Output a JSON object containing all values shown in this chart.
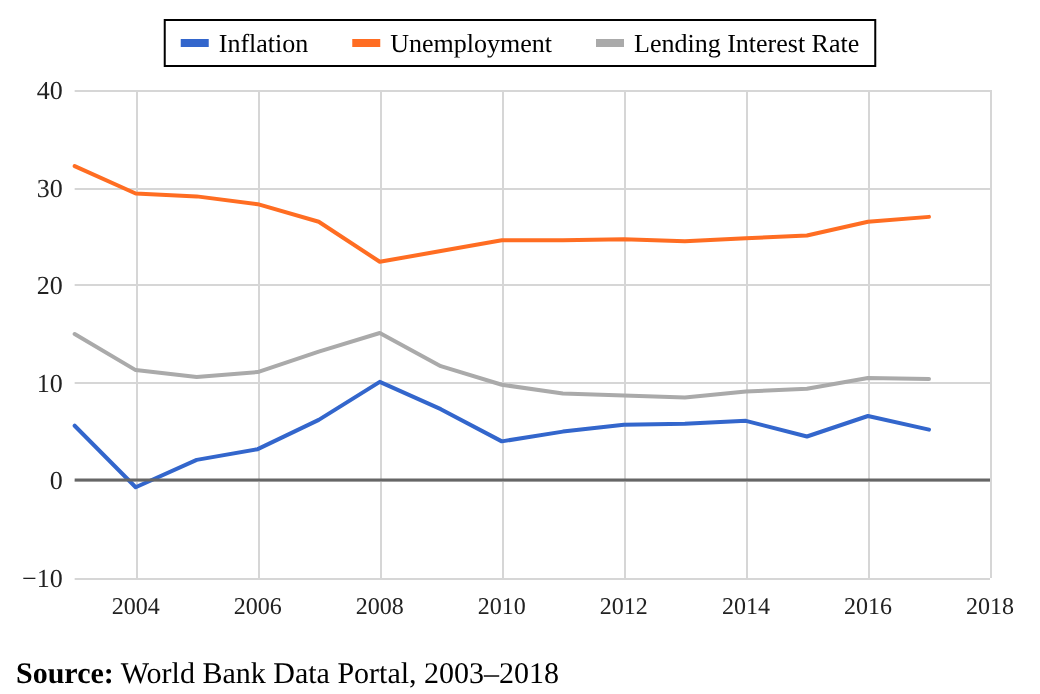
{
  "chart_data": {
    "type": "line",
    "x": [
      2003,
      2004,
      2005,
      2006,
      2007,
      2008,
      2009,
      2010,
      2011,
      2012,
      2013,
      2014,
      2015,
      2016,
      2017
    ],
    "series": [
      {
        "name": "Inflation",
        "color": "#3366cc",
        "values": [
          5.6,
          -0.7,
          2.1,
          3.2,
          6.2,
          10.1,
          7.3,
          4.0,
          5.0,
          5.7,
          5.8,
          6.1,
          4.5,
          6.6,
          5.2
        ]
      },
      {
        "name": "Unemployment",
        "color": "#ff6d22",
        "values": [
          32.2,
          29.4,
          29.1,
          28.3,
          26.5,
          22.4,
          23.5,
          24.6,
          24.6,
          24.7,
          24.5,
          24.8,
          25.1,
          26.5,
          27.0
        ]
      },
      {
        "name": "Lending Interest Rate",
        "color": "#aaaaaa",
        "values": [
          15.0,
          11.3,
          10.6,
          11.1,
          13.2,
          15.1,
          11.7,
          9.8,
          8.9,
          8.7,
          8.5,
          9.1,
          9.4,
          10.5,
          10.4
        ]
      }
    ],
    "xlim": [
      2003,
      2018
    ],
    "xticks": [
      2004,
      2006,
      2008,
      2010,
      2012,
      2014,
      2016,
      2018
    ],
    "ylim": [
      -10,
      40
    ],
    "yticks": [
      -10,
      0,
      10,
      20,
      30,
      40
    ],
    "ref_lines": [
      {
        "axis": "y",
        "value": 0,
        "color": "#666666"
      }
    ],
    "grid": true,
    "legend": "top",
    "marker": "none",
    "line_style": "solid",
    "annotations": [
      "Source: World Bank Data Portal, 2003–2018"
    ]
  }
}
